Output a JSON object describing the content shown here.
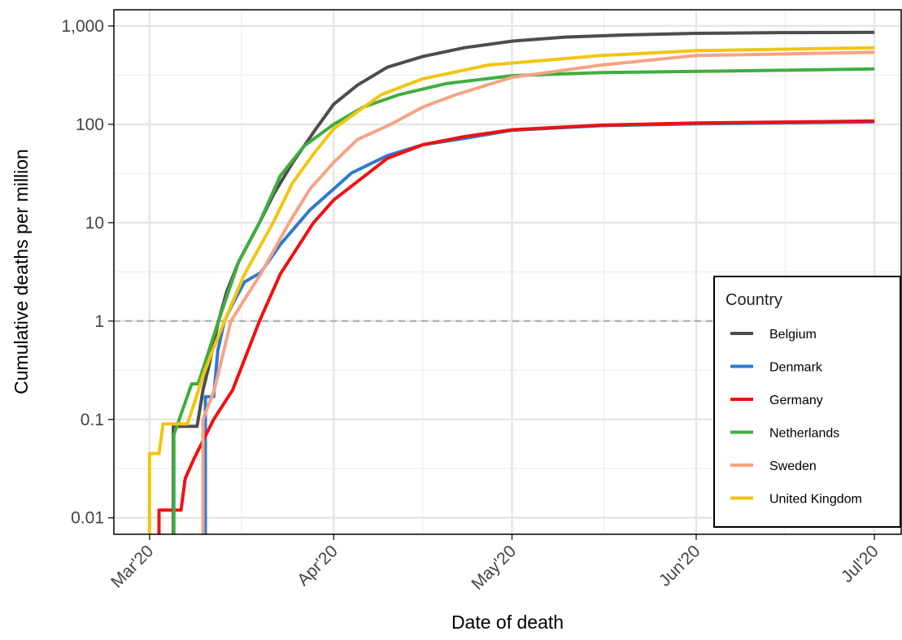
{
  "chart_data": {
    "type": "line",
    "x_label": "Date of death",
    "y_label": "Cumulative deaths per million",
    "xlim": [
      -6,
      126.5
    ],
    "xticks": [
      {
        "value": 0,
        "label": "Mar'20"
      },
      {
        "value": 31,
        "label": "Apr'20"
      },
      {
        "value": 61,
        "label": "May'20"
      },
      {
        "value": 92,
        "label": "Jun'20"
      },
      {
        "value": 122,
        "label": "Jul'20"
      }
    ],
    "ylim": [
      0.0068,
      1460
    ],
    "yticks": [
      0.01,
      0.1,
      1,
      10,
      100,
      {
        "value": 1000,
        "label": "1,000"
      }
    ],
    "y_log": true,
    "grid": true,
    "hline": 1,
    "legend_title": "Country",
    "legend": "bottom-right",
    "series": [
      {
        "name": "Belgium",
        "color": "#4d4d4d",
        "x": [
          4,
          4,
          8,
          9,
          10,
          11.6,
          13,
          15,
          18.5,
          21,
          24,
          28,
          31,
          35,
          40,
          46,
          53,
          61,
          70,
          80,
          92,
          106,
          122
        ],
        "values": [
          0.005,
          0.085,
          0.085,
          0.2,
          0.35,
          1,
          2,
          4,
          10,
          20,
          40,
          90,
          160,
          250,
          380,
          490,
          600,
          700,
          770,
          810,
          840,
          855,
          860
        ]
      },
      {
        "name": "Denmark",
        "color": "#2b7bd3",
        "x": [
          9.4,
          9.4,
          10.8,
          11.5,
          12.6,
          14,
          16,
          18.7,
          22,
          27,
          31,
          34,
          40,
          46,
          53,
          61,
          76,
          92,
          122
        ],
        "values": [
          0.005,
          0.17,
          0.17,
          0.5,
          1,
          1.5,
          2.5,
          3.1,
          6,
          13.5,
          22,
          32,
          48,
          62,
          72,
          87,
          97,
          101,
          106
        ]
      },
      {
        "name": "Germany",
        "color": "#ee1111",
        "x": [
          1.6,
          1.6,
          5.3,
          6,
          7.5,
          10.8,
          14,
          18.5,
          22,
          27.6,
          31,
          40,
          46,
          53,
          61,
          76,
          92,
          122
        ],
        "values": [
          0.005,
          0.012,
          0.012,
          0.025,
          0.04,
          0.1,
          0.2,
          1,
          3,
          10,
          17,
          45,
          62,
          75,
          88,
          98,
          103,
          108
        ]
      },
      {
        "name": "Netherlands",
        "color": "#3fae3f",
        "x": [
          4.1,
          4.1,
          7.1,
          8.2,
          11.6,
          15,
          18.5,
          22,
          26,
          31,
          36,
          42,
          50,
          61,
          76,
          92,
          122
        ],
        "values": [
          0.005,
          0.07,
          0.23,
          0.23,
          1,
          4,
          10,
          30,
          60,
          100,
          150,
          200,
          260,
          312,
          335,
          345,
          365
        ]
      },
      {
        "name": "Sweden",
        "color": "#f6a384",
        "x": [
          9,
          9,
          10.9,
          13.7,
          18.7,
          23.5,
          27,
          31,
          35,
          40.6,
          46,
          51.6,
          61,
          76,
          92,
          122
        ],
        "values": [
          0.005,
          0.1,
          0.2,
          1,
          3,
          10,
          22,
          41,
          70,
          100,
          150,
          200,
          300,
          400,
          500,
          540
        ]
      },
      {
        "name": "United Kingdom",
        "color": "#f2c511",
        "x": [
          0,
          0,
          1.6,
          2.3,
          6.4,
          9.2,
          12.6,
          16,
          20.8,
          24,
          27.6,
          31,
          39,
          46,
          57,
          76,
          92,
          122
        ],
        "values": [
          0.005,
          0.045,
          0.045,
          0.09,
          0.09,
          0.3,
          1,
          3,
          10,
          25,
          50,
          90,
          200,
          290,
          400,
          500,
          560,
          600
        ]
      }
    ]
  }
}
